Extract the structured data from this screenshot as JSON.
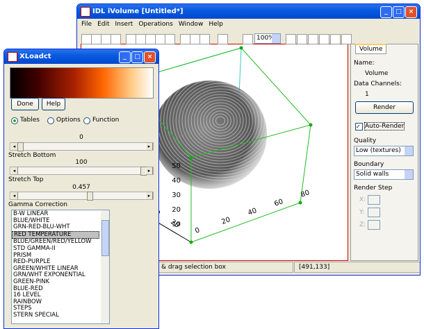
{
  "ivolume": {
    "title": "IDL iVolume [Untitled*]",
    "menu": [
      "File",
      "Edit",
      "Insert",
      "Operations",
      "Window",
      "Help"
    ],
    "zoom": "100%",
    "tab": "Volume",
    "panel": {
      "name_label": "Name:",
      "name": "Volume",
      "channels_label": "Data Channels:",
      "channels": "1",
      "render": "Render",
      "auto_render": "Auto-Render",
      "quality_label": "Quality",
      "quality": "Low (textures)",
      "boundary_label": "Boundary",
      "boundary": "Solid walls",
      "render_step_label": "Render Step",
      "x": "X:",
      "y": "Y:",
      "z": "Z:"
    },
    "axes": {
      "x_ticks": [
        "0",
        "20",
        "40",
        "60",
        "80"
      ],
      "z_ticks": [
        "10",
        "20",
        "30",
        "40",
        "50"
      ],
      "y_ticks": [
        "40",
        "20"
      ]
    },
    "status": "& drag selection box",
    "coords": "[491,133]"
  },
  "xloadct": {
    "title": "XLoadct",
    "done": "Done",
    "help": "Help",
    "modes": [
      "Tables",
      "Options",
      "Function"
    ],
    "stretch_bottom_value": "0",
    "stretch_bottom": "Stretch Bottom",
    "stretch_top_value": "100",
    "stretch_top": "Stretch Top",
    "gamma_value": "0.457",
    "gamma": "Gamma Correction",
    "tables": [
      "B-W LINEAR",
      "BLUE/WHITE",
      "GRN-RED-BLU-WHT",
      "RED TEMPERATURE",
      "BLUE/GREEN/RED/YELLOW",
      "STD GAMMA-II",
      "PRISM",
      "RED-PURPLE",
      "GREEN/WHITE LINEAR",
      "GRN/WHT EXPONENTIAL",
      "GREEN-PINK",
      "BLUE-RED",
      "16 LEVEL",
      "RAINBOW",
      "STEPS",
      "STERN SPECIAL"
    ],
    "selected": "RED TEMPERATURE"
  }
}
